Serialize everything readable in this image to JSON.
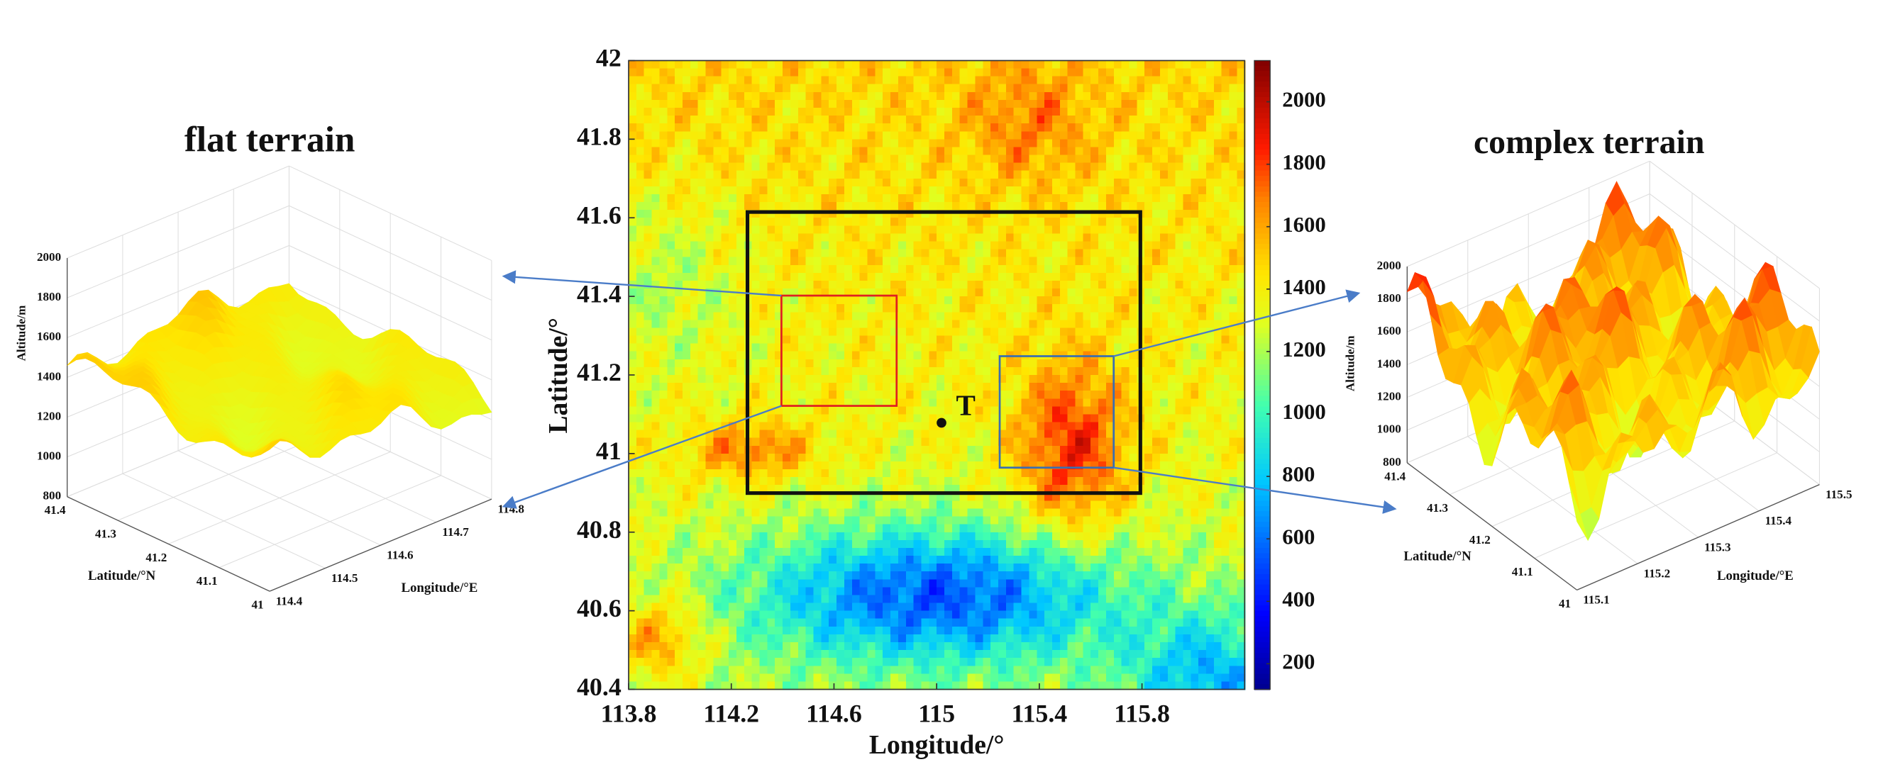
{
  "chart_data": [
    {
      "type": "heatmap",
      "xlabel": "Longitude/°",
      "ylabel": "Latitude/°",
      "xlim": [
        113.8,
        116.2
      ],
      "ylim": [
        40.4,
        42
      ],
      "xticks": [
        113.8,
        114.2,
        114.6,
        115,
        115.4,
        115.8
      ],
      "yticks": [
        40.4,
        40.6,
        40.8,
        41,
        41.2,
        41.4,
        41.6,
        41.8,
        42
      ],
      "clim": [
        118,
        2132
      ],
      "cticks": [
        200,
        400,
        600,
        800,
        1000,
        1200,
        1400,
        1600,
        1800,
        2000
      ],
      "annotation": "T"
    },
    {
      "type": "surface3d",
      "title": "flat terrain",
      "xlabel": "Longitude/°E",
      "ylabel": "Latitude/°N",
      "zlabel": "Altitude/m",
      "xlim": [
        114.4,
        114.8
      ],
      "ylim": [
        41,
        41.4
      ],
      "zlim": [
        800,
        2000
      ],
      "xticks": [
        114.4,
        114.5,
        114.6,
        114.7,
        114.8
      ],
      "yticks": [
        41,
        41.1,
        41.2,
        41.3,
        41.4
      ],
      "zticks": [
        800,
        1000,
        1200,
        1400,
        1600,
        1800,
        2000
      ]
    },
    {
      "type": "surface3d",
      "title": "complex terrain",
      "xlabel": "Longitude/°E",
      "ylabel": "Latitude/°N",
      "zlabel": "Altitude/m",
      "xlim": [
        115.1,
        115.5
      ],
      "ylim": [
        41,
        41.4
      ],
      "zlim": [
        800,
        2000
      ],
      "xticks": [
        115.1,
        115.2,
        115.3,
        115.4,
        115.5
      ],
      "yticks": [
        41,
        41.1,
        41.2,
        41.3,
        41.4
      ],
      "zticks": [
        800,
        1000,
        1200,
        1400,
        1600,
        1800,
        2000
      ]
    }
  ]
}
